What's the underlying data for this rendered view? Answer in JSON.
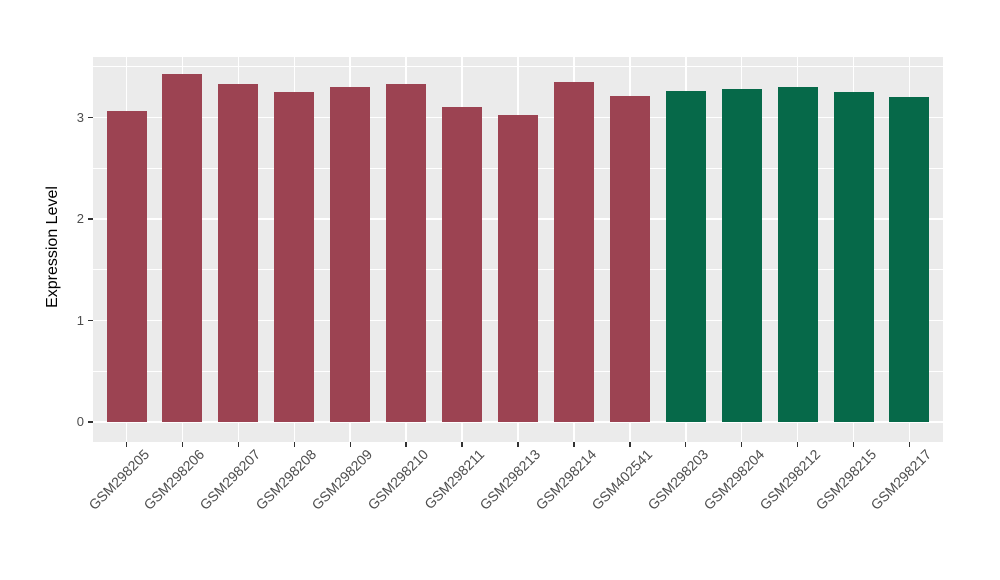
{
  "chart_data": {
    "type": "bar",
    "title": "",
    "xlabel": "",
    "ylabel": "Expression Level",
    "categories": [
      "GSM298205",
      "GSM298206",
      "GSM298207",
      "GSM298208",
      "GSM298209",
      "GSM298210",
      "GSM298211",
      "GSM298213",
      "GSM298214",
      "GSM402541",
      "GSM298203",
      "GSM298204",
      "GSM298212",
      "GSM298215",
      "GSM298217"
    ],
    "values": [
      3.06,
      3.43,
      3.33,
      3.25,
      3.3,
      3.33,
      3.1,
      3.02,
      3.35,
      3.21,
      3.26,
      3.28,
      3.3,
      3.25,
      3.2
    ],
    "bar_group_index": [
      0,
      0,
      0,
      0,
      0,
      0,
      0,
      0,
      0,
      0,
      1,
      1,
      1,
      1,
      1
    ],
    "group_colors": [
      "#9C4352",
      "#066949"
    ],
    "ylim": [
      -0.17,
      3.6
    ],
    "ytick_values": [
      0,
      1,
      2,
      3
    ],
    "ytick_labels": [
      "0",
      "1",
      "2",
      "3"
    ],
    "y_minor_gridlines": [
      0.5,
      1.5,
      2.5,
      3.5
    ],
    "grid": "on",
    "legend_position": "none",
    "panel_bg": "#EBEBEB",
    "grid_color": "#FFFFFF",
    "axis_text_color": "#4D4D4D",
    "axis_title_color": "#000000",
    "tick_mark_color": "#333333"
  }
}
